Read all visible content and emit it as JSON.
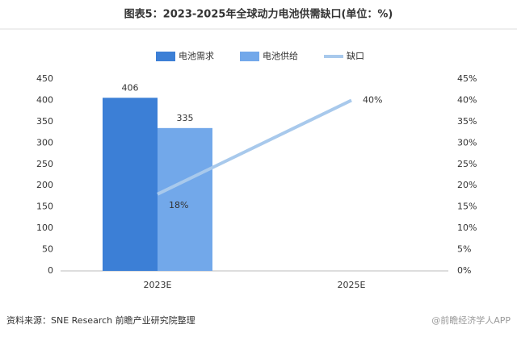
{
  "chart_data": {
    "type": "bar",
    "title": "图表5：2023-2025年全球动力电池供需缺口(单位：%)",
    "categories": [
      "2023E",
      "2025E"
    ],
    "series": [
      {
        "name": "电池需求",
        "color": "#3c7fd6",
        "values": [
          406,
          null
        ]
      },
      {
        "name": "电池供给",
        "color": "#72a8ea",
        "values": [
          335,
          null
        ]
      },
      {
        "name": "缺口",
        "color": "#a8c9ec",
        "type": "line",
        "axis": "y2",
        "values": [
          18,
          40
        ],
        "value_labels": [
          "18%",
          "40%"
        ]
      }
    ],
    "ylim": [
      0,
      450
    ],
    "yticks": [
      0,
      50,
      100,
      150,
      200,
      250,
      300,
      350,
      400,
      450
    ],
    "y2lim": [
      0,
      45
    ],
    "y2ticks": [
      {
        "value": 0,
        "label": "0%"
      },
      {
        "value": 5,
        "label": "5%"
      },
      {
        "value": 10,
        "label": "10%"
      },
      {
        "value": 15,
        "label": "15%"
      },
      {
        "value": 20,
        "label": "20%"
      },
      {
        "value": 25,
        "label": "25%"
      },
      {
        "value": 30,
        "label": "30%"
      },
      {
        "value": 35,
        "label": "35%"
      },
      {
        "value": 40,
        "label": "40%"
      },
      {
        "value": 45,
        "label": "45%"
      }
    ],
    "grid": false,
    "legend": "top"
  },
  "source": "资料来源：SNE Research 前瞻产业研究院整理",
  "watermark": "@前瞻经济学人APP"
}
